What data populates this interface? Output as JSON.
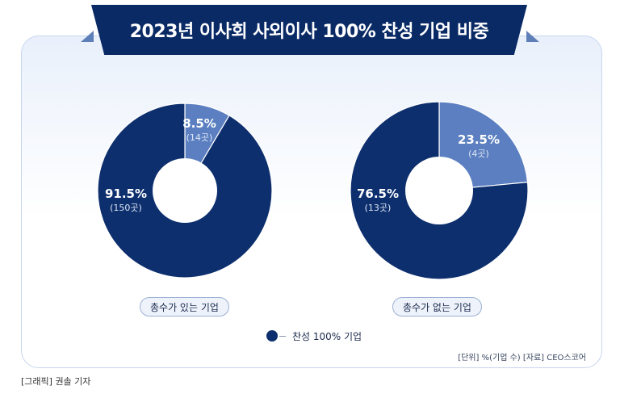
{
  "header": {
    "title": "2023년 이사회 사외이사 100% 찬성 기업 비중"
  },
  "chart_data": [
    {
      "type": "pie",
      "title": "",
      "category_label": "총수가 있는 기업",
      "slices": [
        {
          "label": "찬성 100% 기업",
          "value": 91.5,
          "count_text": "(150곳)",
          "value_text": "91.5%",
          "color": "#0d2f6e"
        },
        {
          "label": "",
          "value": 8.5,
          "count_text": "(14곳)",
          "value_text": "8.5%",
          "color": "#5b7fc0"
        }
      ]
    },
    {
      "type": "pie",
      "title": "",
      "category_label": "총수가 없는 기업",
      "slices": [
        {
          "label": "찬성 100% 기업",
          "value": 76.5,
          "count_text": "(13곳)",
          "value_text": "76.5%",
          "color": "#0d2f6e"
        },
        {
          "label": "",
          "value": 23.5,
          "count_text": "(4곳)",
          "value_text": "23.5%",
          "color": "#5b7fc0"
        }
      ]
    }
  ],
  "legend": {
    "label": "찬성 100% 기업",
    "color": "#0d2f6e"
  },
  "footer": {
    "unit_source": "[단위] %(기업 수)   [자료] CEO스코어",
    "credit": "[그래픽] 권솔 기자"
  }
}
